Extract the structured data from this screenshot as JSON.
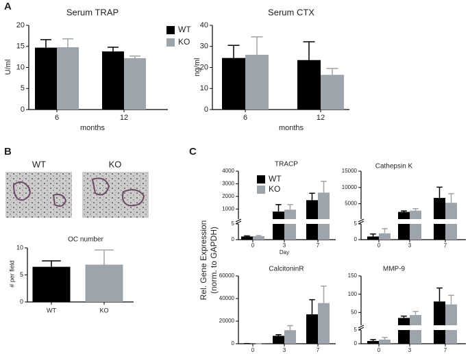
{
  "panel_labels": [
    "A",
    "B",
    "C"
  ],
  "image_labels": [
    "WT",
    "KO"
  ],
  "shared_ylabel": [
    "Rel. Gene Expression",
    "(norm. to GAPDH)"
  ],
  "chart_data": [
    {
      "type": "bar",
      "title": "Serum TRAP",
      "ylabel": "U/ml",
      "xlabel": "months",
      "categories": [
        "6",
        "12"
      ],
      "ylim": [
        0,
        20
      ],
      "yticks": [
        0,
        5,
        10,
        15,
        20
      ],
      "legend": true,
      "series": [
        {
          "name": "WT",
          "color": "#000000",
          "values": [
            14.7,
            13.8
          ],
          "errors": [
            1.9,
            1.0
          ]
        },
        {
          "name": "KO",
          "color": "#9ea4ab",
          "values": [
            14.8,
            12.2
          ],
          "errors": [
            2.0,
            0.5
          ]
        }
      ]
    },
    {
      "type": "bar",
      "title": "Serum CTX",
      "ylabel": "ng/ml",
      "xlabel": "months",
      "categories": [
        "6",
        "12"
      ],
      "ylim": [
        0,
        40
      ],
      "yticks": [
        0,
        10,
        20,
        30,
        40
      ],
      "series": [
        {
          "color": "#000000",
          "values": [
            24.5,
            23.5
          ],
          "errors": [
            6,
            8.7
          ]
        },
        {
          "color": "#9ea4ab",
          "values": [
            26,
            16.5
          ],
          "errors": [
            8.5,
            3
          ]
        }
      ]
    },
    {
      "type": "bar",
      "title": "OC number",
      "ylabel": "# per field",
      "categories": [
        "WT",
        "KO"
      ],
      "ylim": [
        0,
        10
      ],
      "yticks": [
        0,
        5,
        10
      ],
      "series": [
        {
          "colors": [
            "#000000",
            "#9ea4ab"
          ],
          "values": [
            6.5,
            6.9
          ],
          "errors": [
            1.1,
            2.7
          ]
        }
      ]
    },
    {
      "type": "bar",
      "title": "TRACP",
      "xlabel": "Day",
      "categories": [
        "0",
        "3",
        "7"
      ],
      "legend": true,
      "segments": [
        {
          "ylim": [
            0,
            5
          ],
          "yticks": [
            0,
            5
          ]
        },
        {
          "ylim": [
            200,
            4000
          ],
          "yticks": [
            1000,
            2000,
            3000,
            4000
          ]
        }
      ],
      "series": [
        {
          "name": "WT",
          "color": "#000000",
          "values": [
            1,
            800,
            1700
          ],
          "errors": [
            0.2,
            550,
            550
          ]
        },
        {
          "name": "KO",
          "color": "#9ea4ab",
          "values": [
            1.1,
            950,
            2300
          ],
          "errors": [
            0.2,
            400,
            900
          ]
        }
      ]
    },
    {
      "type": "bar",
      "title": "Cathepsin K",
      "categories": [
        "0",
        "3",
        "7"
      ],
      "segments": [
        {
          "ylim": [
            0,
            5
          ],
          "yticks": [
            0,
            5
          ]
        },
        {
          "ylim": [
            300,
            15000
          ],
          "yticks": [
            5000,
            10000,
            15000
          ]
        }
      ],
      "series": [
        {
          "color": "#000000",
          "values": [
            1,
            2500,
            6800
          ],
          "errors": [
            0.8,
            300,
            3300
          ]
        },
        {
          "color": "#9ea4ab",
          "values": [
            2,
            2900,
            5300
          ],
          "errors": [
            1.5,
            600,
            2800
          ]
        }
      ]
    },
    {
      "type": "bar",
      "title": "CalcitoninR",
      "categories": [
        "0",
        "3",
        "7"
      ],
      "ylim": [
        0,
        60000
      ],
      "yticks": [
        0,
        20000,
        40000,
        60000
      ],
      "series": [
        {
          "color": "#000000",
          "values": [
            100,
            7000,
            26000
          ],
          "errors": [
            50,
            1000,
            13000
          ]
        },
        {
          "color": "#9ea4ab",
          "values": [
            100,
            12000,
            36000
          ],
          "errors": [
            50,
            4000,
            15000
          ]
        }
      ]
    },
    {
      "type": "bar",
      "title": "MMP-9",
      "categories": [
        "0",
        "3",
        "7"
      ],
      "segments": [
        {
          "ylim": [
            0,
            5
          ],
          "yticks": [
            0,
            5
          ]
        },
        {
          "ylim": [
            15,
            150
          ],
          "yticks": [
            50,
            100,
            150
          ]
        }
      ],
      "series": [
        {
          "color": "#000000",
          "values": [
            1,
            35,
            80
          ],
          "errors": [
            0.5,
            5,
            37
          ]
        },
        {
          "color": "#9ea4ab",
          "values": [
            1.5,
            43,
            72
          ],
          "errors": [
            0.8,
            10,
            25
          ]
        }
      ]
    }
  ]
}
